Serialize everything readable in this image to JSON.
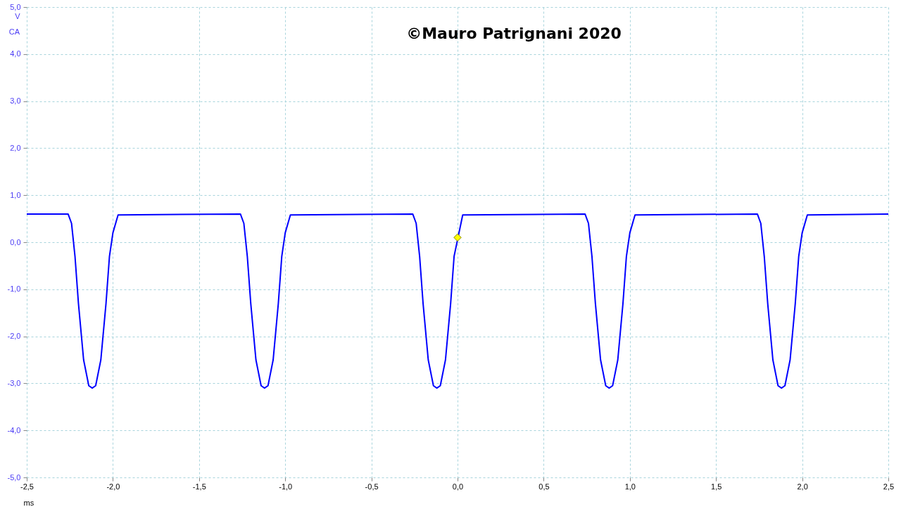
{
  "chart_data": {
    "type": "line",
    "title": "©Mauro Patrignani 2020",
    "xlabel": "ms",
    "ylabel": "V",
    "annotations": [
      "CA"
    ],
    "xlim": [
      -2.5,
      2.5
    ],
    "ylim": [
      -5,
      5
    ],
    "xticks": [
      {
        "value": -2.5,
        "label": "-2,5"
      },
      {
        "value": -2,
        "label": "-2,0"
      },
      {
        "value": -1.5,
        "label": "-1,5"
      },
      {
        "value": -1,
        "label": "-1,0"
      },
      {
        "value": -0.5,
        "label": "-0,5"
      },
      {
        "value": 0,
        "label": "0,0"
      },
      {
        "value": 0.5,
        "label": "0,5"
      },
      {
        "value": 1,
        "label": "1,0"
      },
      {
        "value": 1.5,
        "label": "1,5"
      },
      {
        "value": 2,
        "label": "2,0"
      },
      {
        "value": 2.5,
        "label": "2,5"
      }
    ],
    "yticks": [
      {
        "value": -5,
        "label": "-5,0"
      },
      {
        "value": -4,
        "label": "-4,0"
      },
      {
        "value": -3,
        "label": "-3,0"
      },
      {
        "value": -2,
        "label": "-2,0"
      },
      {
        "value": -1,
        "label": "-1,0"
      },
      {
        "value": 0,
        "label": "0,0"
      },
      {
        "value": 1,
        "label": "1,0"
      },
      {
        "value": 2,
        "label": "2,0"
      },
      {
        "value": 3,
        "label": "3,0"
      },
      {
        "value": 4,
        "label": "4,0"
      },
      {
        "value": 5,
        "label": "5,0"
      }
    ],
    "grid": true,
    "series": [
      {
        "color": "#0000ff",
        "x": [
          -2.5,
          -2.26,
          -2.24,
          -2.22,
          -2.2,
          -2.17,
          -2.14,
          -2.12,
          -2.1,
          -2.07,
          -2.04,
          -2.02,
          -2.0,
          -1.97,
          -1.26,
          -1.24,
          -1.22,
          -1.2,
          -1.17,
          -1.14,
          -1.12,
          -1.1,
          -1.07,
          -1.04,
          -1.02,
          -1.0,
          -0.97,
          -0.26,
          -0.24,
          -0.22,
          -0.2,
          -0.17,
          -0.14,
          -0.12,
          -0.1,
          -0.07,
          -0.04,
          -0.02,
          0.03,
          0.74,
          0.76,
          0.78,
          0.8,
          0.83,
          0.86,
          0.88,
          0.9,
          0.93,
          0.96,
          0.98,
          1.0,
          1.03,
          1.74,
          1.76,
          1.78,
          1.8,
          1.83,
          1.86,
          1.88,
          1.9,
          1.93,
          1.96,
          1.98,
          2.0,
          2.03,
          2.5
        ],
        "values": [
          0.6,
          0.6,
          0.4,
          -0.3,
          -1.3,
          -2.5,
          -3.05,
          -3.1,
          -3.05,
          -2.5,
          -1.3,
          -0.3,
          0.2,
          0.58,
          0.6,
          0.4,
          -0.3,
          -1.3,
          -2.5,
          -3.05,
          -3.1,
          -3.05,
          -2.5,
          -1.3,
          -0.3,
          0.2,
          0.58,
          0.6,
          0.4,
          -0.3,
          -1.3,
          -2.5,
          -3.05,
          -3.1,
          -3.05,
          -2.5,
          -1.3,
          -0.3,
          0.58,
          0.6,
          0.4,
          -0.3,
          -1.3,
          -2.5,
          -3.05,
          -3.1,
          -3.05,
          -2.5,
          -1.3,
          -0.3,
          0.2,
          0.58,
          0.6,
          0.4,
          -0.3,
          -1.3,
          -2.5,
          -3.05,
          -3.1,
          -3.05,
          -2.5,
          -1.3,
          -0.3,
          0.2,
          0.58,
          0.6
        ]
      },
      {
        "type": "scatter",
        "color": "#ffff00",
        "marker": "diamond",
        "x": [
          0
        ],
        "values": [
          0.1
        ]
      }
    ]
  }
}
